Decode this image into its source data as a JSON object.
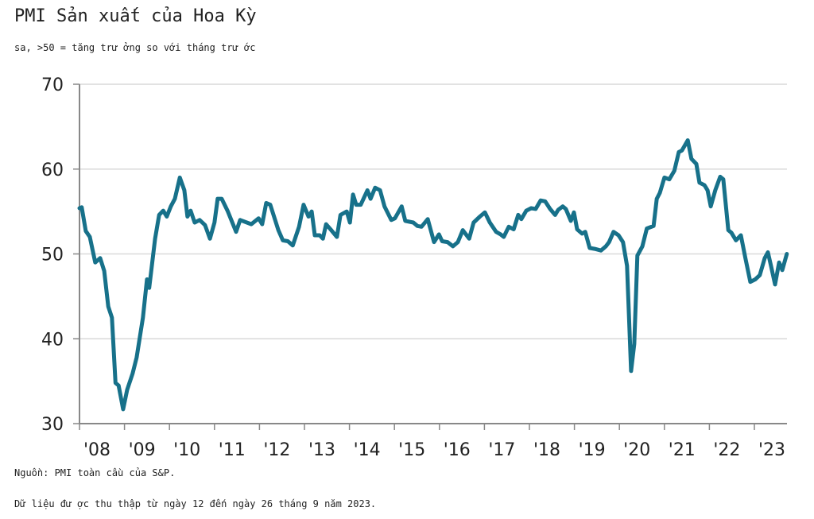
{
  "header": {
    "title": "PMI Sản xuất của Hoa Kỳ",
    "subtitle": "sa, >50 = tăng trư ởng so với tháng trư ớc"
  },
  "footer": {
    "source": "Nguồn: PMI toàn cầu của S&P.",
    "note": "Dữ liệu đư ợc thu thập từ ngày 12 đến ngày 26 tháng 9 năm 2023."
  },
  "colors": {
    "line": "#17718a",
    "grid": "#d9d9d9",
    "axis": "#888888"
  },
  "chart_data": {
    "type": "line",
    "title": "PMI Sản xuất của Hoa Kỳ",
    "xlabel": "",
    "ylabel": "",
    "xlim": [
      2008,
      2023.72
    ],
    "ylim": [
      30,
      70
    ],
    "grid": true,
    "yticks": [
      30,
      40,
      50,
      60,
      70
    ],
    "xticks": [
      {
        "value": 2008,
        "label": "'08"
      },
      {
        "value": 2009,
        "label": "'09"
      },
      {
        "value": 2010,
        "label": "'10"
      },
      {
        "value": 2011,
        "label": "'11"
      },
      {
        "value": 2012,
        "label": "'12"
      },
      {
        "value": 2013,
        "label": "'13"
      },
      {
        "value": 2014,
        "label": "'14"
      },
      {
        "value": 2015,
        "label": "'15"
      },
      {
        "value": 2016,
        "label": "'16"
      },
      {
        "value": 2017,
        "label": "'17"
      },
      {
        "value": 2018,
        "label": "'18"
      },
      {
        "value": 2019,
        "label": "'19"
      },
      {
        "value": 2020,
        "label": "'20"
      },
      {
        "value": 2021,
        "label": "'21"
      },
      {
        "value": 2022,
        "label": "'22"
      },
      {
        "value": 2023,
        "label": "'23"
      }
    ],
    "series": [
      {
        "name": "PMI Sản xuất của Hoa Kỳ",
        "points": [
          [
            2008.0,
            55.4
          ],
          [
            2008.05,
            55.5
          ],
          [
            2008.14,
            52.7
          ],
          [
            2008.23,
            52.0
          ],
          [
            2008.35,
            49.0
          ],
          [
            2008.46,
            49.5
          ],
          [
            2008.55,
            48.0
          ],
          [
            2008.64,
            43.8
          ],
          [
            2008.72,
            42.5
          ],
          [
            2008.8,
            34.8
          ],
          [
            2008.87,
            34.5
          ],
          [
            2008.97,
            31.7
          ],
          [
            2009.06,
            34.0
          ],
          [
            2009.18,
            35.9
          ],
          [
            2009.27,
            37.8
          ],
          [
            2009.41,
            42.5
          ],
          [
            2009.5,
            47.0
          ],
          [
            2009.55,
            46.0
          ],
          [
            2009.68,
            51.8
          ],
          [
            2009.77,
            54.6
          ],
          [
            2009.86,
            55.1
          ],
          [
            2009.94,
            54.4
          ],
          [
            2010.03,
            55.6
          ],
          [
            2010.12,
            56.5
          ],
          [
            2010.23,
            59.0
          ],
          [
            2010.33,
            57.5
          ],
          [
            2010.4,
            54.4
          ],
          [
            2010.47,
            55.1
          ],
          [
            2010.56,
            53.7
          ],
          [
            2010.67,
            54.0
          ],
          [
            2010.79,
            53.4
          ],
          [
            2010.9,
            51.8
          ],
          [
            2011.0,
            53.7
          ],
          [
            2011.07,
            56.5
          ],
          [
            2011.16,
            56.5
          ],
          [
            2011.29,
            55.1
          ],
          [
            2011.48,
            52.6
          ],
          [
            2011.57,
            54.0
          ],
          [
            2011.82,
            53.5
          ],
          [
            2011.98,
            54.2
          ],
          [
            2012.06,
            53.5
          ],
          [
            2012.15,
            56.0
          ],
          [
            2012.24,
            55.8
          ],
          [
            2012.42,
            52.8
          ],
          [
            2012.52,
            51.6
          ],
          [
            2012.63,
            51.5
          ],
          [
            2012.74,
            51.0
          ],
          [
            2012.88,
            53.2
          ],
          [
            2012.98,
            55.8
          ],
          [
            2013.09,
            54.4
          ],
          [
            2013.16,
            55.0
          ],
          [
            2013.23,
            52.2
          ],
          [
            2013.34,
            52.2
          ],
          [
            2013.41,
            51.8
          ],
          [
            2013.48,
            53.5
          ],
          [
            2013.58,
            52.9
          ],
          [
            2013.72,
            52.0
          ],
          [
            2013.8,
            54.6
          ],
          [
            2013.94,
            55.0
          ],
          [
            2014.01,
            53.7
          ],
          [
            2014.08,
            57.0
          ],
          [
            2014.15,
            55.8
          ],
          [
            2014.25,
            55.8
          ],
          [
            2014.4,
            57.5
          ],
          [
            2014.47,
            56.5
          ],
          [
            2014.57,
            57.8
          ],
          [
            2014.68,
            57.5
          ],
          [
            2014.78,
            55.6
          ],
          [
            2014.93,
            54.0
          ],
          [
            2015.01,
            54.2
          ],
          [
            2015.16,
            55.6
          ],
          [
            2015.24,
            53.9
          ],
          [
            2015.42,
            53.7
          ],
          [
            2015.51,
            53.3
          ],
          [
            2015.6,
            53.2
          ],
          [
            2015.74,
            54.1
          ],
          [
            2015.88,
            51.4
          ],
          [
            2015.99,
            52.3
          ],
          [
            2016.06,
            51.5
          ],
          [
            2016.18,
            51.4
          ],
          [
            2016.3,
            50.9
          ],
          [
            2016.41,
            51.4
          ],
          [
            2016.52,
            52.8
          ],
          [
            2016.66,
            51.8
          ],
          [
            2016.76,
            53.7
          ],
          [
            2016.9,
            54.4
          ],
          [
            2017.01,
            54.9
          ],
          [
            2017.12,
            53.7
          ],
          [
            2017.26,
            52.6
          ],
          [
            2017.36,
            52.3
          ],
          [
            2017.43,
            52.0
          ],
          [
            2017.54,
            53.2
          ],
          [
            2017.65,
            52.9
          ],
          [
            2017.75,
            54.6
          ],
          [
            2017.82,
            54.1
          ],
          [
            2017.93,
            55.1
          ],
          [
            2018.04,
            55.4
          ],
          [
            2018.14,
            55.3
          ],
          [
            2018.25,
            56.3
          ],
          [
            2018.35,
            56.2
          ],
          [
            2018.46,
            55.3
          ],
          [
            2018.57,
            54.6
          ],
          [
            2018.64,
            55.2
          ],
          [
            2018.74,
            55.6
          ],
          [
            2018.81,
            55.3
          ],
          [
            2018.92,
            53.9
          ],
          [
            2018.99,
            54.9
          ],
          [
            2019.06,
            52.9
          ],
          [
            2019.17,
            52.4
          ],
          [
            2019.24,
            52.6
          ],
          [
            2019.34,
            50.7
          ],
          [
            2019.45,
            50.6
          ],
          [
            2019.59,
            50.4
          ],
          [
            2019.7,
            50.9
          ],
          [
            2019.77,
            51.4
          ],
          [
            2019.87,
            52.6
          ],
          [
            2019.98,
            52.2
          ],
          [
            2020.08,
            51.4
          ],
          [
            2020.17,
            48.6
          ],
          [
            2020.26,
            36.2
          ],
          [
            2020.33,
            39.4
          ],
          [
            2020.4,
            49.8
          ],
          [
            2020.51,
            50.9
          ],
          [
            2020.61,
            53.0
          ],
          [
            2020.76,
            53.3
          ],
          [
            2020.83,
            56.5
          ],
          [
            2020.9,
            57.2
          ],
          [
            2021.0,
            59.0
          ],
          [
            2021.11,
            58.8
          ],
          [
            2021.22,
            59.8
          ],
          [
            2021.32,
            62.0
          ],
          [
            2021.39,
            62.2
          ],
          [
            2021.52,
            63.4
          ],
          [
            2021.6,
            61.2
          ],
          [
            2021.71,
            60.6
          ],
          [
            2021.78,
            58.4
          ],
          [
            2021.89,
            58.1
          ],
          [
            2021.96,
            57.5
          ],
          [
            2022.03,
            55.6
          ],
          [
            2022.13,
            57.5
          ],
          [
            2022.24,
            59.1
          ],
          [
            2022.31,
            58.8
          ],
          [
            2022.42,
            52.8
          ],
          [
            2022.49,
            52.5
          ],
          [
            2022.59,
            51.6
          ],
          [
            2022.7,
            52.2
          ],
          [
            2022.8,
            49.5
          ],
          [
            2022.91,
            46.7
          ],
          [
            2023.02,
            47.0
          ],
          [
            2023.12,
            47.5
          ],
          [
            2023.23,
            49.5
          ],
          [
            2023.3,
            50.2
          ],
          [
            2023.37,
            48.6
          ],
          [
            2023.46,
            46.4
          ],
          [
            2023.55,
            49.0
          ],
          [
            2023.62,
            48.1
          ],
          [
            2023.72,
            50.0
          ]
        ]
      }
    ]
  }
}
